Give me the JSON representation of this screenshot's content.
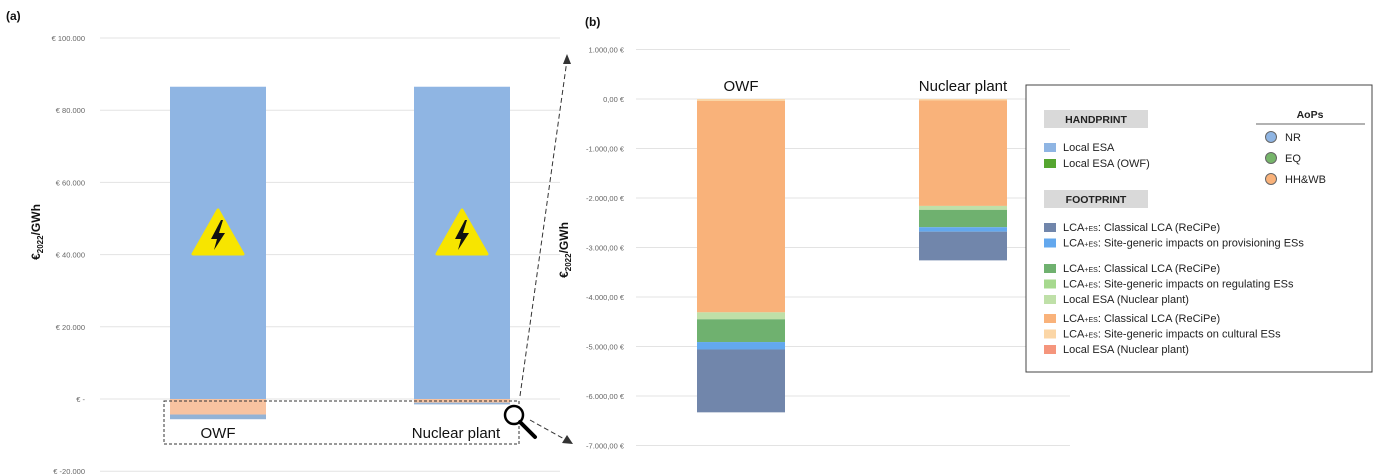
{
  "chart_data": [
    {
      "panel": "(a)",
      "type": "bar",
      "stacked": true,
      "categories": [
        "OWF",
        "Nuclear plant"
      ],
      "ylabel_main": "€",
      "ylabel_sub": "2022",
      "ylabel_rest": "/GWh",
      "ylim": [
        -20000,
        100000
      ],
      "ticks": [
        {
          "value": 100000,
          "label": "€ 100.000"
        },
        {
          "value": 80000,
          "label": "€ 80.000"
        },
        {
          "value": 60000,
          "label": "€ 60.000"
        },
        {
          "value": 40000,
          "label": "€ 40.000"
        },
        {
          "value": 20000,
          "label": "€ 20.000"
        },
        {
          "value": 0,
          "label": "€ -"
        },
        {
          "value": -20000,
          "label": "€ -20.000"
        }
      ],
      "series": [
        {
          "name": "Local ESA",
          "color": "#8fb5e3",
          "values": [
            86500,
            86500
          ]
        },
        {
          "name": "Footprint",
          "color": "#f8c3a0",
          "values": [
            -4300,
            -1000
          ]
        },
        {
          "name": "Footprint",
          "color": "#93b3d6",
          "values": [
            -1300,
            -500
          ]
        }
      ],
      "icon": "electricity-warning-icon"
    },
    {
      "panel": "(b)",
      "type": "bar",
      "stacked": true,
      "categories": [
        "OWF",
        "Nuclear plant"
      ],
      "ylabel_main": "€",
      "ylabel_sub": "2022",
      "ylabel_rest": "/GWh",
      "ylim": [
        -7000,
        1000
      ],
      "ticks": [
        {
          "value": 1000,
          "label": "1.000,00 €"
        },
        {
          "value": 0,
          "label": "0,00 €"
        },
        {
          "value": -1000,
          "label": "-1.000,00 €"
        },
        {
          "value": -2000,
          "label": "-2.000,00 €"
        },
        {
          "value": -3000,
          "label": "-3.000,00 €"
        },
        {
          "value": -4000,
          "label": "-4.000,00 €"
        },
        {
          "value": -5000,
          "label": "-5.000,00 €"
        },
        {
          "value": -6000,
          "label": "-6.000,00 €"
        },
        {
          "value": -7000,
          "label": "-7.000,00 €"
        }
      ],
      "series": [
        {
          "name": "HH&WB: Site-generic impacts on cultural ESs",
          "color": "#fbd6a6",
          "values": [
            -40,
            -30
          ]
        },
        {
          "name": "HH&WB: Classical LCA (ReCiPe)",
          "color": "#f9b27a",
          "values": [
            -4270,
            -2130
          ]
        },
        {
          "name": "EQ: Local ESA (Nuclear plant)",
          "color": "#bfe0a8",
          "values": [
            -140,
            -80
          ]
        },
        {
          "name": "EQ: Classical LCA (ReCiPe)",
          "color": "#6fb16f",
          "values": [
            -460,
            -350
          ]
        },
        {
          "name": "NR: Site-generic impacts on provisioning ESs",
          "color": "#63a8ee",
          "values": [
            -150,
            -90
          ]
        },
        {
          "name": "NR: Classical LCA (ReCiPe)",
          "color": "#7186ab",
          "values": [
            -1270,
            -580
          ]
        }
      ]
    }
  ],
  "legend": {
    "handprint_title": "HANDPRINT",
    "handprint": [
      {
        "label": "Local ESA",
        "color": "#8fb5e3"
      },
      {
        "label": "Local ESA (OWF)",
        "color": "#55a630"
      }
    ],
    "footprint_title": "FOOTPRINT",
    "footprint_groups": [
      [
        {
          "prefix": "LCA",
          "sub": "+ES",
          "rest": ": Classical LCA (ReCiPe)",
          "color": "#7186ab"
        },
        {
          "prefix": "LCA",
          "sub": "+ES",
          "rest": ": Site-generic impacts on provisioning ESs",
          "color": "#63a8ee"
        }
      ],
      [
        {
          "prefix": "LCA",
          "sub": "+ES",
          "rest": ": Classical LCA (ReCiPe)",
          "color": "#6fb16f"
        },
        {
          "prefix": "LCA",
          "sub": "+ES",
          "rest": ": Site-generic impacts on regulating ESs",
          "color": "#a6d98e"
        },
        {
          "prefix": "Local ESA (Nuclear plant)",
          "sub": "",
          "rest": "",
          "color": "#bfe0a8"
        }
      ],
      [
        {
          "prefix": "LCA",
          "sub": "+ES",
          "rest": ": Classical LCA (ReCiPe)",
          "color": "#f9b27a"
        },
        {
          "prefix": "LCA",
          "sub": "+ES",
          "rest": ": Site-generic impacts on cultural ESs",
          "color": "#fbd6a6"
        },
        {
          "prefix": "Local ESA (Nuclear plant)",
          "sub": "",
          "rest": "",
          "color": "#f5957c"
        }
      ]
    ],
    "aops_title": "AoPs",
    "aops": [
      {
        "label": "NR",
        "color": "#8fb5e3"
      },
      {
        "label": "EQ",
        "color": "#76b56a"
      },
      {
        "label": "HH&WB",
        "color": "#f9b27a"
      }
    ]
  },
  "icons": [
    "magnifier-icon"
  ]
}
